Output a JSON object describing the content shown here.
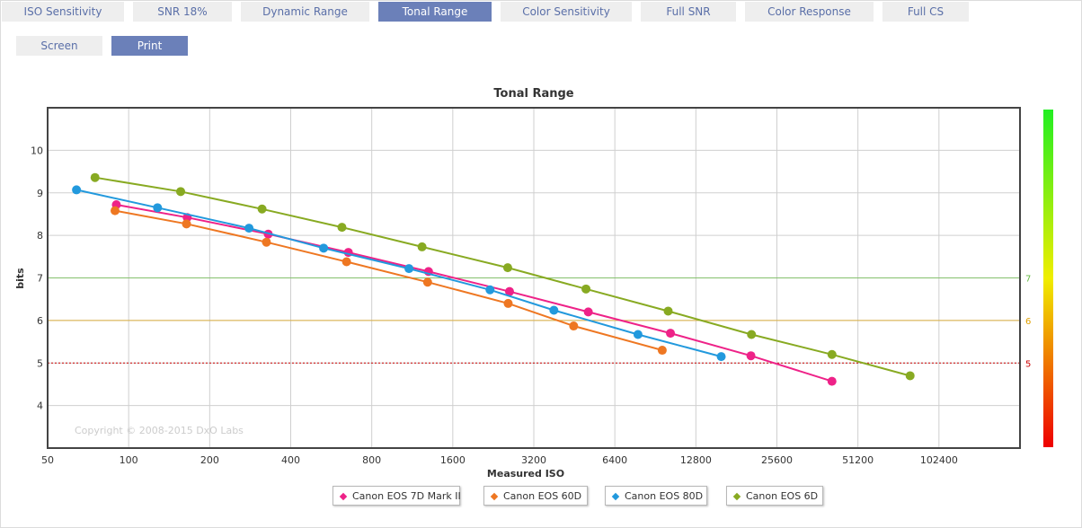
{
  "tabs": [
    {
      "label": "ISO Sensitivity",
      "active": false
    },
    {
      "label": "SNR 18%",
      "active": false
    },
    {
      "label": "Dynamic Range",
      "active": false
    },
    {
      "label": "Tonal Range",
      "active": true
    },
    {
      "label": "Color Sensitivity",
      "active": false
    },
    {
      "label": "Full SNR",
      "active": false
    },
    {
      "label": "Color Response",
      "active": false
    },
    {
      "label": "Full CS",
      "active": false
    }
  ],
  "view_buttons": [
    {
      "label": "Screen",
      "active": false
    },
    {
      "label": "Print",
      "active": true
    }
  ],
  "copyright": "Copyright © 2008-2015 DxO Labs",
  "colors": {
    "tab_active": "#6b80b9",
    "tab_text": "#5a6fa8",
    "ref_7": "#66bb44",
    "ref_6": "#e0a000",
    "ref_5": "#cc0000"
  },
  "chart_data": {
    "type": "line",
    "title": "Tonal Range",
    "xlabel": "Measured ISO",
    "ylabel": "bits",
    "x_scale": "log2",
    "xlim": [
      50,
      204800
    ],
    "ylim": [
      3,
      11
    ],
    "x_ticks": [
      50,
      100,
      200,
      400,
      800,
      1600,
      3200,
      6400,
      12800,
      25600,
      51200,
      102400
    ],
    "y_ticks": [
      4,
      5,
      6,
      7,
      8,
      9,
      10
    ],
    "grid": true,
    "reference_lines": [
      {
        "value": 7,
        "label": "7",
        "color": "#66bb44"
      },
      {
        "value": 6,
        "label": "6",
        "color": "#e0a000"
      },
      {
        "value": 5,
        "label": "5",
        "color": "#cc0000"
      }
    ],
    "color_scale": {
      "top": "#22ee22",
      "middle": "#f0ee00",
      "bottom": "#ee0000"
    },
    "legend_position": "bottom",
    "series": [
      {
        "name": "Canon EOS 7D Mark II",
        "color": "#ee2288",
        "x": [
          90,
          165,
          330,
          655,
          1300,
          2600,
          5100,
          10300,
          20500,
          41000
        ],
        "y": [
          8.72,
          8.42,
          8.03,
          7.6,
          7.15,
          6.68,
          6.2,
          5.7,
          5.17,
          4.57
        ]
      },
      {
        "name": "Canon EOS 60D",
        "color": "#ee7722",
        "x": [
          89,
          164,
          325,
          645,
          1290,
          2570,
          4500,
          9600
        ],
        "y": [
          8.58,
          8.27,
          7.84,
          7.38,
          6.9,
          6.4,
          5.87,
          5.3
        ]
      },
      {
        "name": "Canon EOS 80D",
        "color": "#2299dd",
        "x": [
          64,
          128,
          280,
          530,
          1100,
          2200,
          3800,
          7800,
          15900
        ],
        "y": [
          9.07,
          8.65,
          8.17,
          7.7,
          7.22,
          6.72,
          6.24,
          5.67,
          5.15
        ]
      },
      {
        "name": "Canon EOS 6D",
        "color": "#88aa22",
        "x": [
          75,
          156,
          313,
          620,
          1230,
          2560,
          5000,
          10100,
          20600,
          41000,
          80000
        ],
        "y": [
          9.36,
          9.03,
          8.62,
          8.19,
          7.73,
          7.24,
          6.74,
          6.22,
          5.67,
          5.2,
          4.7
        ]
      }
    ]
  }
}
